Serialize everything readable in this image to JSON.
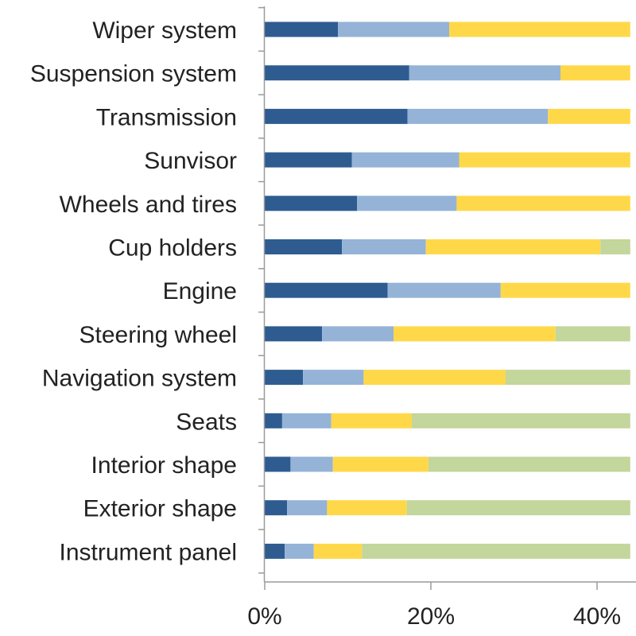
{
  "chart_data": {
    "type": "bar",
    "orientation": "horizontal",
    "stacked": true,
    "title": "",
    "xlabel": "",
    "ylabel": "",
    "categories": [
      "Wiper system",
      "Suspension system",
      "Transmission",
      "Sunvisor",
      "Wheels and tires",
      "Cup holders",
      "Engine",
      "Steering wheel",
      "Navigation system",
      "Seats",
      "Interior shape",
      "Exterior shape",
      "Instrument panel"
    ],
    "x_ticks": [
      "0%",
      "20%",
      "40%"
    ],
    "xlim": [
      0,
      44
    ],
    "grid": false,
    "legend": "none",
    "series": [
      {
        "color": "#2e5c91",
        "values": [
          8.8,
          17.4,
          17.2,
          10.5,
          11.1,
          9.3,
          14.8,
          6.9,
          4.6,
          2.1,
          3.1,
          2.7,
          2.4
        ]
      },
      {
        "color": "#95b3d7",
        "values": [
          13.4,
          18.2,
          16.9,
          12.9,
          12.0,
          10.1,
          13.6,
          8.6,
          7.3,
          5.9,
          5.1,
          4.8,
          3.5
        ]
      },
      {
        "color": "#ffd84a",
        "values": [
          21.8,
          8.4,
          9.9,
          20.6,
          20.9,
          21.0,
          15.6,
          19.5,
          17.1,
          9.7,
          11.5,
          9.6,
          5.8
        ]
      },
      {
        "color": "#c3d69b",
        "values": [
          0,
          0,
          0,
          0,
          0,
          3.6,
          0,
          9.0,
          15.0,
          26.3,
          24.3,
          26.9,
          32.3
        ]
      }
    ]
  }
}
